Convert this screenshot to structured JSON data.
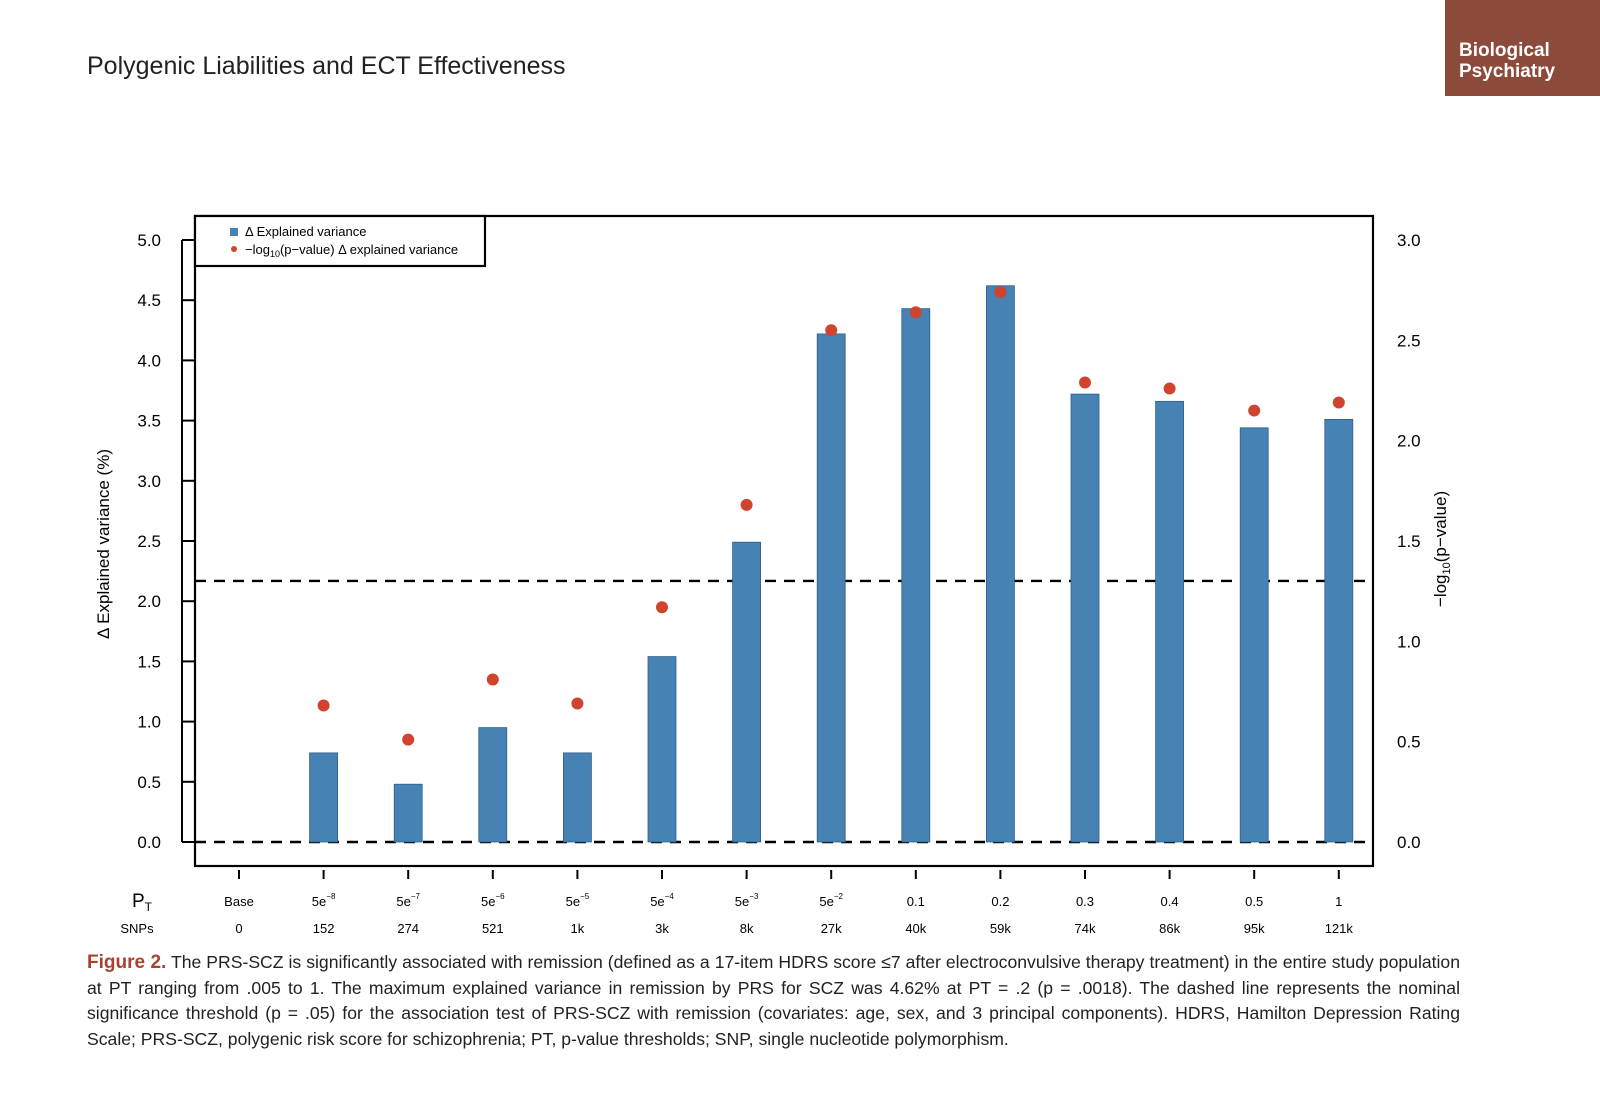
{
  "header": {
    "title": "Polygenic Liabilities and ECT Effectiveness"
  },
  "brand": {
    "line1": "Biological",
    "line2": "Psychiatry"
  },
  "colors": {
    "bar": "#4682b4",
    "point": "#d0432e",
    "brand": "#8c4a3a",
    "caption_label": "#a8422f"
  },
  "chart_data": {
    "type": "bar",
    "categories": [
      "Base",
      "5e−8",
      "5e−7",
      "5e−6",
      "5e−5",
      "5e−4",
      "5e−3",
      "5e−2",
      "0.1",
      "0.2",
      "0.3",
      "0.4",
      "0.5",
      "1"
    ],
    "category_base": [
      "Base",
      "5e",
      "5e",
      "5e",
      "5e",
      "5e",
      "5e",
      "5e",
      "0.1",
      "0.2",
      "0.3",
      "0.4",
      "0.5",
      "1"
    ],
    "category_exp": [
      "",
      "−8",
      "−7",
      "−6",
      "−5",
      "−4",
      "−3",
      "−2",
      "",
      "",
      "",
      "",
      "",
      ""
    ],
    "snps": [
      "0",
      "152",
      "274",
      "521",
      "1k",
      "3k",
      "8k",
      "27k",
      "40k",
      "59k",
      "74k",
      "86k",
      "95k",
      "121k"
    ],
    "series": [
      {
        "name": "Δ Explained variance",
        "axis": "left",
        "values": [
          0,
          0.74,
          0.48,
          0.95,
          0.74,
          1.54,
          2.49,
          4.22,
          4.43,
          4.62,
          3.72,
          3.66,
          3.44,
          3.51
        ]
      },
      {
        "name": "−log10(p−value) Δ explained variance",
        "axis": "right",
        "values": [
          null,
          0.68,
          0.51,
          0.81,
          0.69,
          1.17,
          1.68,
          2.55,
          2.64,
          2.74,
          2.29,
          2.26,
          2.15,
          2.19
        ]
      }
    ],
    "threshold_right": 1.301,
    "ylabel": "Δ Explained variance (%)",
    "ylabel_right": "−log10(p−value)",
    "ylim": [
      0,
      5.0
    ],
    "ylim_right": [
      0,
      3.0
    ],
    "yticks": [
      "0.0",
      "0.5",
      "1.0",
      "1.5",
      "2.0",
      "2.5",
      "3.0",
      "3.5",
      "4.0",
      "4.5",
      "5.0"
    ],
    "yticks_right": [
      "0.0",
      "0.5",
      "1.0",
      "1.5",
      "2.0",
      "2.5",
      "3.0"
    ],
    "row_label_pt": "P",
    "row_label_pt_sub": "T",
    "row_label_snps": "SNPs",
    "legend": {
      "placement": "top-left",
      "entry1": "Δ Explained variance",
      "entry2_pre": "−log",
      "entry2_sub": "10",
      "entry2_post": "(p−value) Δ explained variance"
    }
  },
  "caption": {
    "label": "Figure 2.",
    "text": "The PRS-SCZ is significantly associated with remission (defined as a 17-item HDRS score ≤7 after electroconvulsive therapy treatment) in the entire study population at PT ranging from .005 to 1. The maximum explained variance in remission by PRS for SCZ was 4.62% at PT = .2 (p = .0018). The dashed line represents the nominal significance threshold (p = .05) for the association test of PRS-SCZ with remission (covariates: age, sex, and 3 principal components). HDRS, Hamilton Depression Rating Scale; PRS-SCZ, polygenic risk score for schizophrenia; PT, p-value thresholds; SNP, single nucleotide polymorphism."
  }
}
